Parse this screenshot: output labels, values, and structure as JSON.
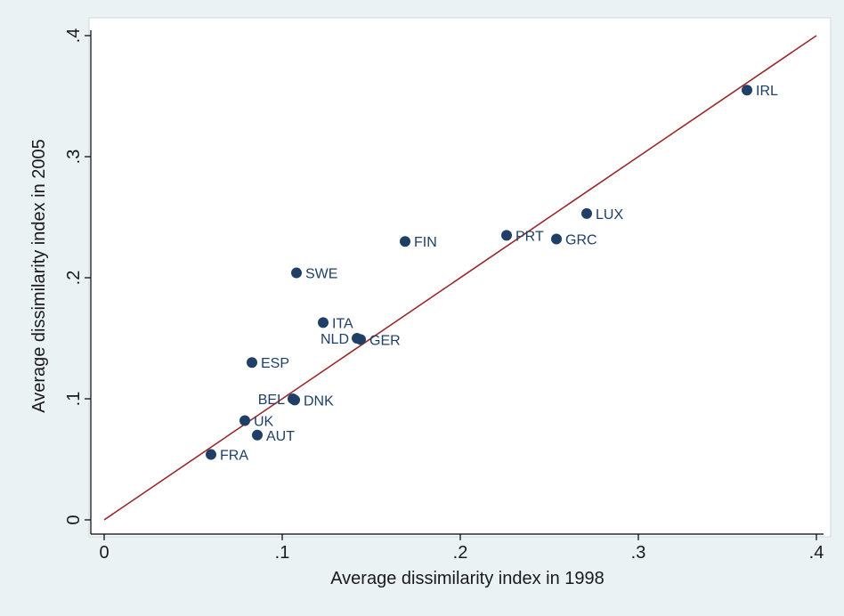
{
  "chart_data": {
    "type": "scatter",
    "xlabel": "Average dissimilarity index in 1998",
    "ylabel": "Average dissimilarity index in 2005",
    "xlim": [
      0,
      0.4
    ],
    "ylim": [
      0,
      0.4
    ],
    "grid": false,
    "x_ticks": [
      "0",
      ".1",
      ".2",
      ".3",
      ".4"
    ],
    "y_ticks": [
      "0",
      ".1",
      ".2",
      ".3",
      ".4"
    ],
    "points": [
      {
        "label": "IRL",
        "x": 0.361,
        "y": 0.355
      },
      {
        "label": "LUX",
        "x": 0.271,
        "y": 0.253
      },
      {
        "label": "PRT",
        "x": 0.226,
        "y": 0.235
      },
      {
        "label": "GRC",
        "x": 0.254,
        "y": 0.232
      },
      {
        "label": "FIN",
        "x": 0.169,
        "y": 0.23
      },
      {
        "label": "SWE",
        "x": 0.108,
        "y": 0.204
      },
      {
        "label": "ITA",
        "x": 0.123,
        "y": 0.163
      },
      {
        "label": "NLD",
        "x": 0.142,
        "y": 0.15
      },
      {
        "label": "GER",
        "x": 0.144,
        "y": 0.149
      },
      {
        "label": "ESP",
        "x": 0.083,
        "y": 0.13
      },
      {
        "label": "BEL",
        "x": 0.106,
        "y": 0.1
      },
      {
        "label": "DNK",
        "x": 0.107,
        "y": 0.099
      },
      {
        "label": "UK",
        "x": 0.079,
        "y": 0.082
      },
      {
        "label": "AUT",
        "x": 0.086,
        "y": 0.07
      },
      {
        "label": "FRA",
        "x": 0.06,
        "y": 0.054
      }
    ],
    "reference_line": {
      "x": [
        0,
        0.4
      ],
      "y": [
        0,
        0.4
      ]
    },
    "colors": {
      "background": "#eaf2f3",
      "plot_background": "#ffffff",
      "marker": "#1f3f66",
      "line": "#9a2a2a"
    }
  }
}
